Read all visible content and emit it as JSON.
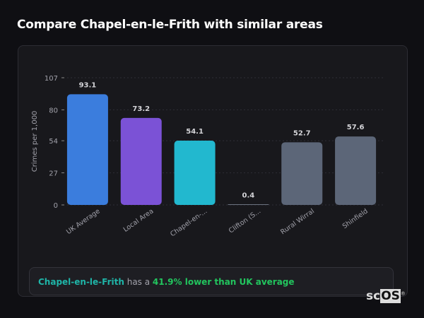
{
  "title": "Compare Chapel-en-le-Frith with similar areas",
  "chart_data": {
    "type": "bar",
    "categories": [
      "UK Average",
      "Local Area",
      "Chapel-en-...",
      "Clifton (S...",
      "Rural Wirral",
      "Shinfield"
    ],
    "values": [
      93.1,
      73.2,
      54.1,
      0.4,
      52.7,
      57.6
    ],
    "value_labels": [
      "93.1",
      "73.2",
      "54.1",
      "0.4",
      "52.7",
      "57.6"
    ],
    "colors": [
      "#3b7ddd",
      "#7b52d6",
      "#22b8cf",
      "#6b7280",
      "#5c6678",
      "#5c6678"
    ],
    "ylabel": "Crimes per 1,000",
    "xlabel": "",
    "ylim": [
      0,
      107
    ],
    "yticks": [
      "0",
      "27",
      "54",
      "80",
      "107"
    ],
    "ytick_values": [
      0,
      27,
      54,
      80,
      107
    ],
    "grid": true
  },
  "summary": {
    "place": "Chapel-en-le-Frith",
    "middle": " has a ",
    "difference": "41.9% lower than UK average"
  },
  "logo": {
    "part1": "sc",
    "part2": "OS",
    "mark": "®"
  }
}
